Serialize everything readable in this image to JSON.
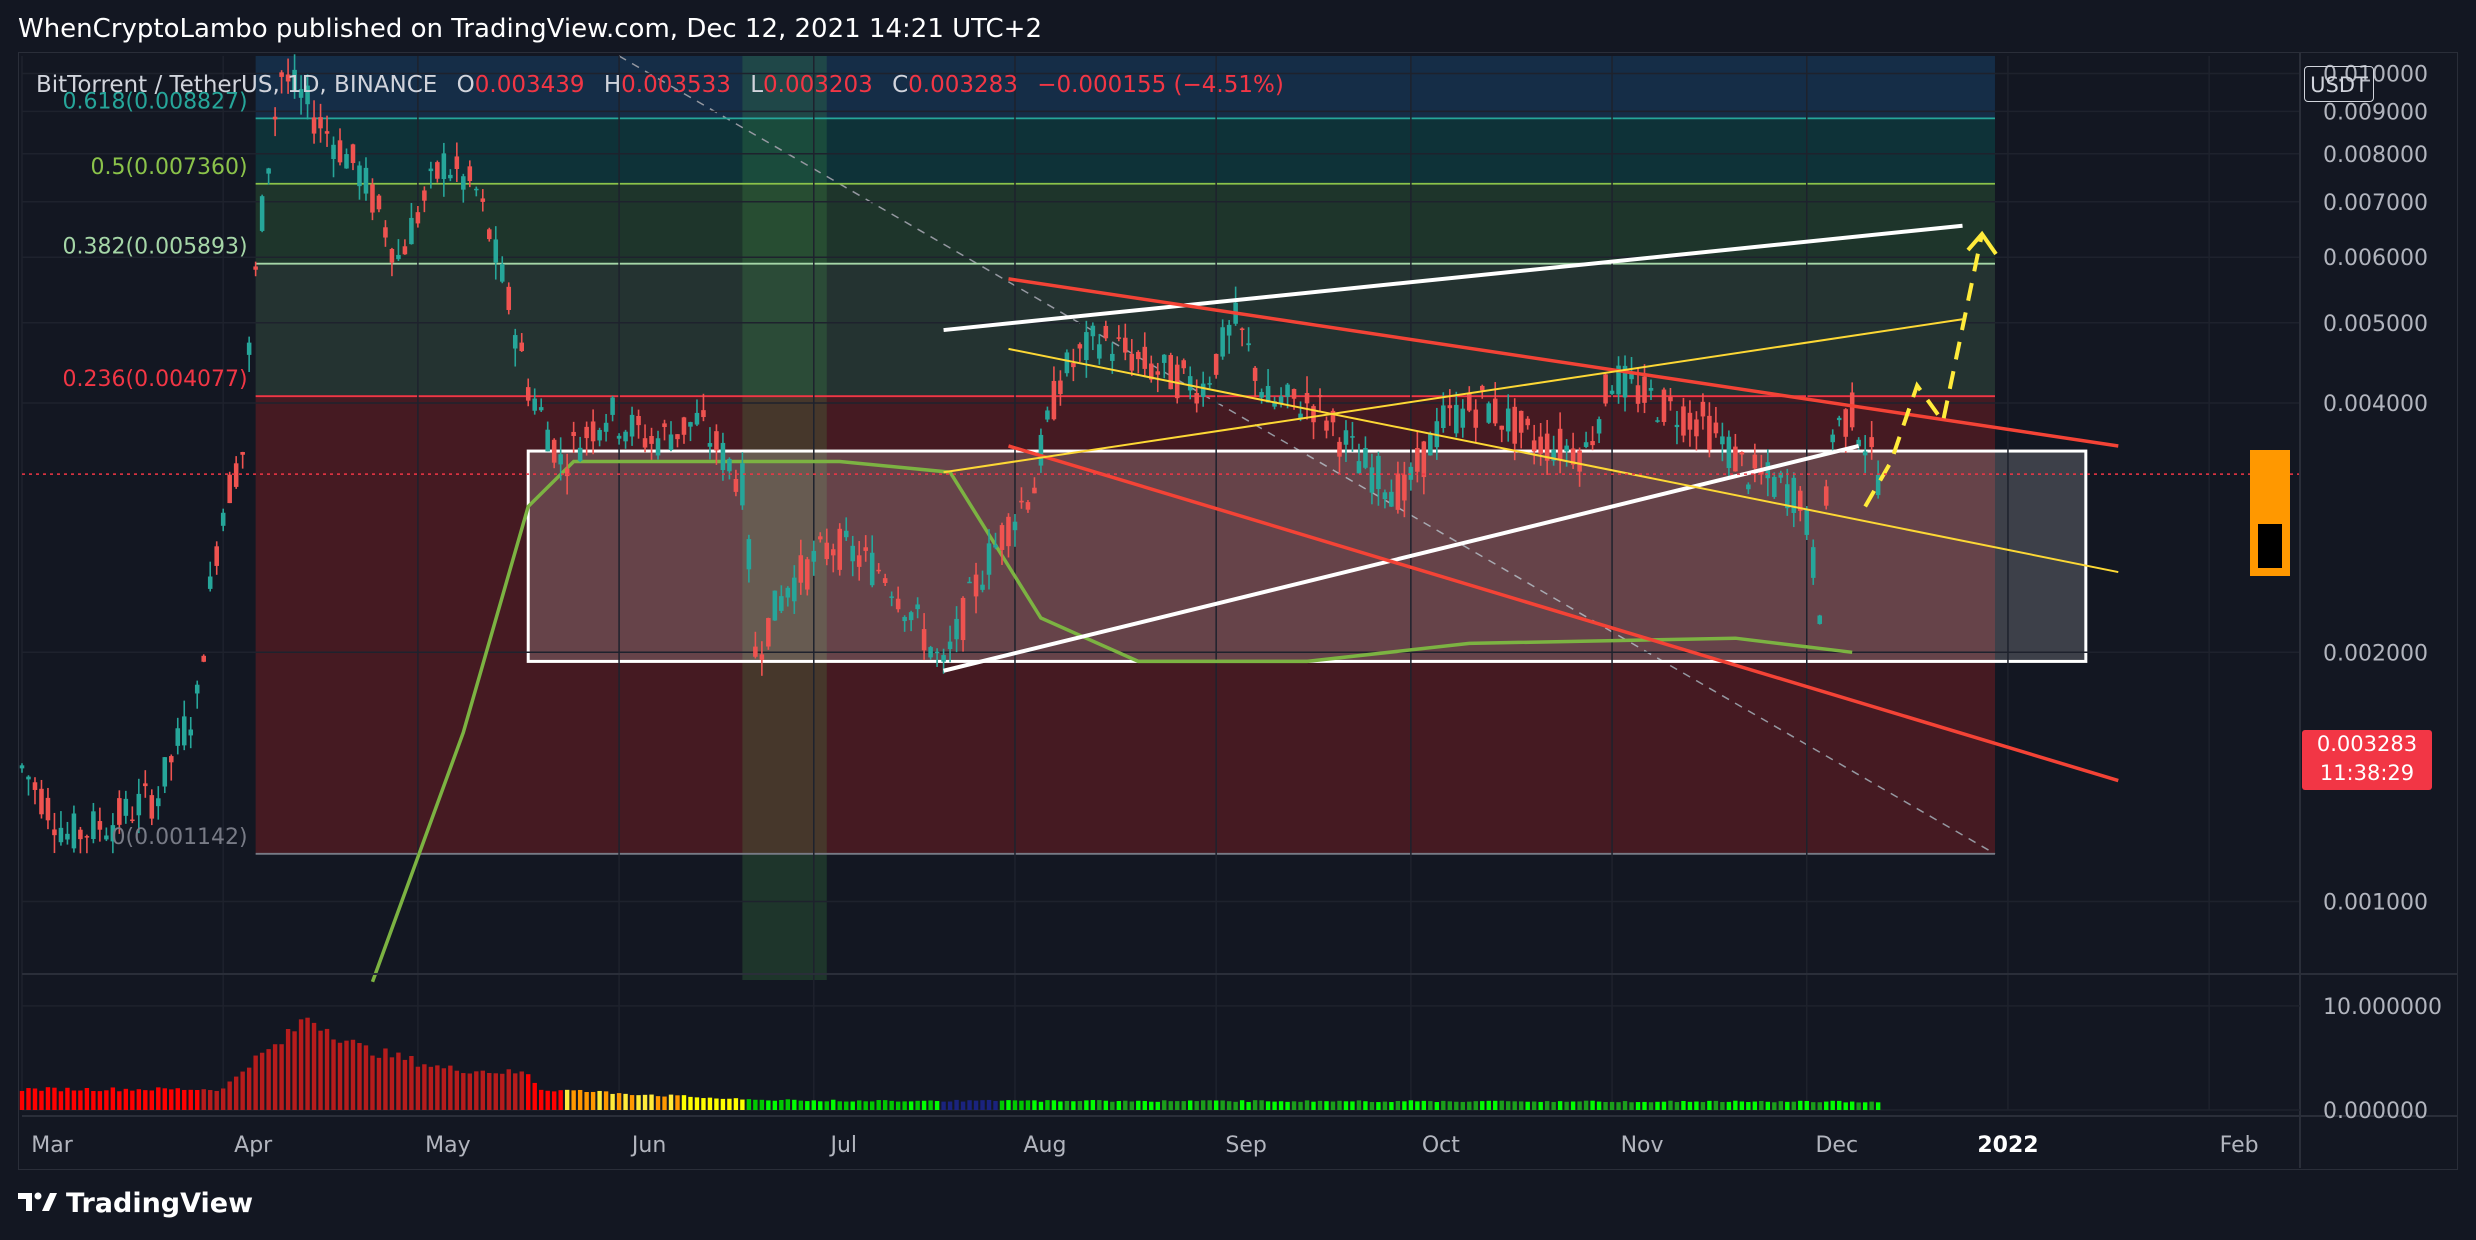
{
  "header": {
    "published_text": "WhenCryptoLambo published on TradingView.com, Dec 12, 2021 14:21 UTC+2"
  },
  "legend": {
    "symbol": "BitTorrent / TetherUS, 1D, BINANCE",
    "open_label": "O",
    "open": "0.003439",
    "high_label": "H",
    "high": "0.003533",
    "low_label": "L",
    "low": "0.003203",
    "close_label": "C",
    "close": "0.003283",
    "change": "−0.000155 (−4.51%)"
  },
  "currency_badge": "USDT",
  "current_price": {
    "value": "0.003283",
    "countdown": "11:38:29"
  },
  "footer": {
    "brand": "TradingView"
  },
  "colors": {
    "up": "#26a69a",
    "down": "#ef5350",
    "fib_red": "#f23645",
    "fib_green": "#8bc34a",
    "fib_teal": "#26a69a",
    "trend_white": "#ffffff",
    "trend_red": "#f44336",
    "trend_yellow": "#fdd835",
    "ma_green": "#7cb342",
    "projection_yellow": "#ffeb3b"
  },
  "chart_data": {
    "type": "candlestick",
    "title": "BitTorrent / TetherUS, 1D, BINANCE",
    "y_axis": {
      "ticks": [
        "0.010000",
        "0.009000",
        "0.008000",
        "0.007000",
        "0.006000",
        "0.005000",
        "0.004000",
        "0.002000",
        "0.001000"
      ],
      "range": [
        0.00085,
        0.0105
      ]
    },
    "x_axis": {
      "ticks": [
        "Mar",
        "Apr",
        "May",
        "Jun",
        "Jul",
        "Aug",
        "Sep",
        "Oct",
        "Nov",
        "Dec",
        "2022",
        "Feb"
      ],
      "range": [
        "2021-03-01",
        "2022-02-15"
      ]
    },
    "fibonacci": [
      {
        "label": "0.618(0.008827)",
        "level": 0.008827
      },
      {
        "label": "0.5(0.007360)",
        "level": 0.00736
      },
      {
        "label": "0.382(0.005893)",
        "level": 0.005893
      },
      {
        "label": "0.236(0.004077)",
        "level": 0.004077
      },
      {
        "label": "0(0.001142)",
        "level": 0.001142
      }
    ],
    "price_path": [
      [
        "2021-03-01",
        0.00145
      ],
      [
        "2021-03-08",
        0.0012
      ],
      [
        "2021-03-15",
        0.00125
      ],
      [
        "2021-03-22",
        0.00135
      ],
      [
        "2021-03-28",
        0.00175
      ],
      [
        "2021-04-01",
        0.003
      ],
      [
        "2021-04-04",
        0.0035
      ],
      [
        "2021-04-07",
        0.0068
      ],
      [
        "2021-04-10",
        0.01
      ],
      [
        "2021-04-16",
        0.0087
      ],
      [
        "2021-04-22",
        0.0076
      ],
      [
        "2021-04-28",
        0.006
      ],
      [
        "2021-05-05",
        0.0078
      ],
      [
        "2021-05-10",
        0.0072
      ],
      [
        "2021-05-13",
        0.006
      ],
      [
        "2021-05-18",
        0.0042
      ],
      [
        "2021-05-23",
        0.0034
      ],
      [
        "2021-05-30",
        0.0039
      ],
      [
        "2021-06-06",
        0.0036
      ],
      [
        "2021-06-13",
        0.0038
      ],
      [
        "2021-06-20",
        0.0032
      ],
      [
        "2021-06-22",
        0.002
      ],
      [
        "2021-06-27",
        0.0024
      ],
      [
        "2021-07-04",
        0.0027
      ],
      [
        "2021-07-12",
        0.0025
      ],
      [
        "2021-07-21",
        0.0019
      ],
      [
        "2021-07-28",
        0.0026
      ],
      [
        "2021-08-04",
        0.0032
      ],
      [
        "2021-08-08",
        0.0043
      ],
      [
        "2021-08-14",
        0.0048
      ],
      [
        "2021-08-22",
        0.0044
      ],
      [
        "2021-08-30",
        0.0042
      ],
      [
        "2021-09-04",
        0.005
      ],
      [
        "2021-09-09",
        0.004
      ],
      [
        "2021-09-16",
        0.004
      ],
      [
        "2021-09-23",
        0.0034
      ],
      [
        "2021-09-30",
        0.0031
      ],
      [
        "2021-10-06",
        0.0038
      ],
      [
        "2021-10-12",
        0.004
      ],
      [
        "2021-10-20",
        0.0036
      ],
      [
        "2021-10-28",
        0.0035
      ],
      [
        "2021-11-01",
        0.0043
      ],
      [
        "2021-11-08",
        0.004
      ],
      [
        "2021-11-15",
        0.0038
      ],
      [
        "2021-11-22",
        0.0033
      ],
      [
        "2021-11-30",
        0.0031
      ],
      [
        "2021-12-03",
        0.0023
      ],
      [
        "2021-12-05",
        0.0037
      ],
      [
        "2021-12-08",
        0.0039
      ],
      [
        "2021-12-12",
        0.003283
      ]
    ],
    "trendlines": [
      {
        "name": "upper channel",
        "color": "white",
        "from": [
          "2021-07-21",
          0.0049
        ],
        "to": [
          "2021-12-25",
          0.00655
        ]
      },
      {
        "name": "lower channel",
        "color": "white",
        "from": [
          "2021-07-21",
          0.0019
        ],
        "to": [
          "2021-12-09",
          0.00355
        ]
      },
      {
        "name": "descending resistance",
        "color": "red",
        "from": [
          "2021-07-31",
          0.00565
        ],
        "to": [
          "2022-01-18",
          0.00355
        ]
      },
      {
        "name": "descending support",
        "color": "red",
        "from": [
          "2021-07-31",
          0.00355
        ],
        "to": [
          "2022-01-18",
          0.0014
        ]
      },
      {
        "name": "rising yellow",
        "color": "yellow",
        "from": [
          "2021-07-21",
          0.0033
        ],
        "to": [
          "2021-12-25",
          0.00505
        ]
      },
      {
        "name": "falling yellow",
        "color": "yellow",
        "from": [
          "2021-07-31",
          0.00465
        ],
        "to": [
          "2022-01-18",
          0.0025
        ]
      }
    ],
    "range_box": {
      "from": "2021-05-18",
      "to": "2022-01-13",
      "top": 0.0035,
      "bottom": 0.00195
    },
    "projection": [
      [
        "2021-12-10",
        0.003
      ],
      [
        "2021-12-14",
        0.0034
      ],
      [
        "2021-12-18",
        0.0042
      ],
      [
        "2021-12-22",
        0.0038
      ],
      [
        "2021-12-28",
        0.0064
      ]
    ],
    "indicator": {
      "name": "volatility histogram",
      "ticks": [
        "10.000000",
        "0.000000"
      ],
      "range": [
        0,
        12
      ]
    },
    "grid": true
  }
}
